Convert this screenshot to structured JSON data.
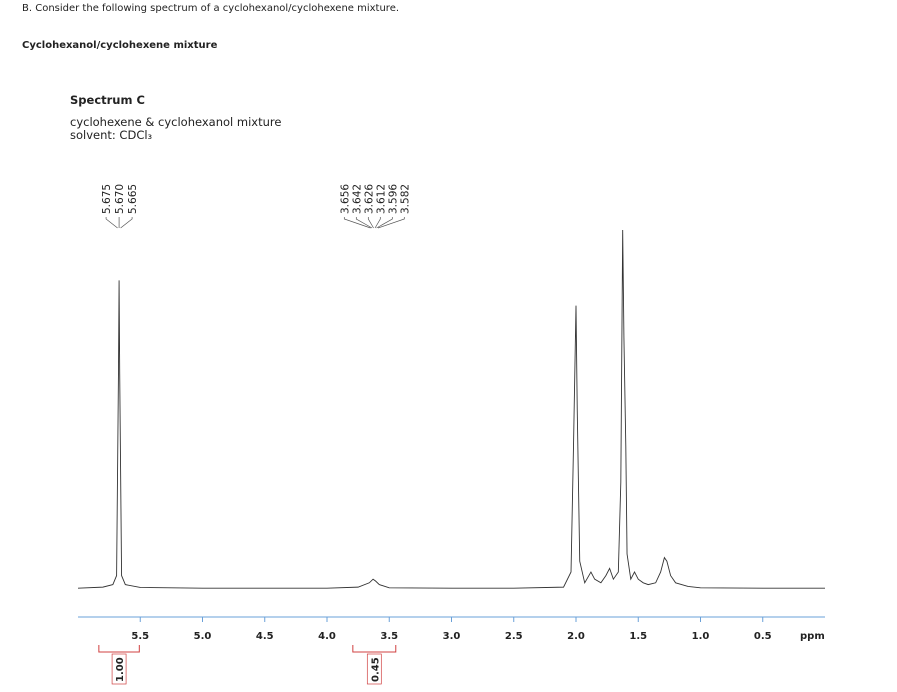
{
  "header": {
    "question": "B. Consider the following spectrum of a cyclohexanol/cyclohexene mixture.",
    "subtitle": "Cyclohexanol/cyclohexene mixture"
  },
  "chart_data": {
    "type": "line",
    "title": "Spectrum C",
    "subtitle": "cyclohexene & cyclohexanol mixture",
    "solvent": "solvent: CDCl₃",
    "x_label": "ppm",
    "color": "#333333",
    "x": [
      6.0,
      5.8,
      5.72,
      5.69,
      5.675,
      5.67,
      5.665,
      5.65,
      5.62,
      5.5,
      5.0,
      4.5,
      4.0,
      3.75,
      3.66,
      3.63,
      3.61,
      3.58,
      3.5,
      3.0,
      2.5,
      2.1,
      2.04,
      2.02,
      2.0,
      1.99,
      1.97,
      1.93,
      1.88,
      1.85,
      1.8,
      1.76,
      1.73,
      1.7,
      1.66,
      1.64,
      1.625,
      1.615,
      1.6,
      1.59,
      1.56,
      1.53,
      1.5,
      1.46,
      1.42,
      1.36,
      1.32,
      1.29,
      1.27,
      1.24,
      1.2,
      1.1,
      1.0,
      0.5,
      0.0
    ],
    "values": [
      0.5,
      0.8,
      1.5,
      4,
      60,
      86,
      60,
      4,
      1.5,
      0.7,
      0.5,
      0.5,
      0.5,
      0.8,
      2,
      3,
      2.5,
      1.5,
      0.6,
      0.5,
      0.5,
      0.8,
      5,
      40,
      79,
      50,
      8,
      2,
      5,
      3,
      2,
      4,
      6,
      3,
      5,
      30,
      100,
      70,
      40,
      10,
      3,
      5,
      3,
      2,
      1.5,
      2,
      5,
      9,
      8,
      4,
      2,
      1,
      0.6,
      0.5,
      0.5
    ],
    "xlim": [
      6.0,
      0.0
    ],
    "ylim": [
      0,
      100
    ],
    "xticks": [
      5.5,
      {
        "value": 5,
        "label": "5.0"
      },
      4.5,
      {
        "value": 4,
        "label": "4.0"
      },
      3.5,
      {
        "value": 3,
        "label": "3.0"
      },
      2.5,
      {
        "value": 2,
        "label": "2.0"
      },
      1.5,
      {
        "value": 1,
        "label": "1.0"
      },
      0.5
    ],
    "peak_labels": [
      {
        "at": 5.67,
        "labels": [
          "5.675",
          "5.670",
          "5.665"
        ]
      },
      {
        "at": 3.62,
        "labels": [
          "3.656",
          "3.642",
          "3.626",
          "3.612",
          "3.596",
          "3.582"
        ]
      }
    ],
    "integrals": [
      {
        "from": 5.72,
        "to": 5.62,
        "label": "1.00"
      },
      {
        "from": 3.68,
        "to": 3.56,
        "label": "0.45"
      }
    ],
    "integral_color": "#d04040"
  }
}
